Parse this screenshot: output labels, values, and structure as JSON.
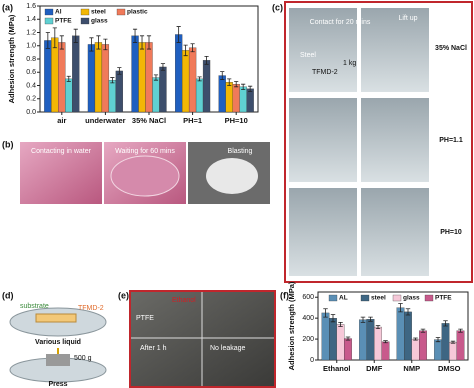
{
  "chart_data": [
    {
      "type": "bar",
      "y_label": "Adhesion strength (MPa)",
      "categories": [
        "air",
        "underwater",
        "35% NaCl",
        "PH=1",
        "PH=10"
      ],
      "series": [
        {
          "name": "Al",
          "color": "#1f5fc0",
          "values": [
            1.08,
            1.02,
            1.15,
            1.17,
            0.55
          ],
          "errors": [
            0.12,
            0.1,
            0.1,
            0.12,
            0.06
          ]
        },
        {
          "name": "steel",
          "color": "#f2b705",
          "values": [
            1.12,
            1.05,
            1.05,
            0.93,
            0.45
          ],
          "errors": [
            0.15,
            0.1,
            0.1,
            0.08,
            0.05
          ]
        },
        {
          "name": "plastic",
          "color": "#f07a5a",
          "values": [
            1.05,
            1.02,
            1.05,
            0.97,
            0.42
          ],
          "errors": [
            0.1,
            0.08,
            0.1,
            0.06,
            0.04
          ]
        },
        {
          "name": "PTFE",
          "color": "#5fd0d2",
          "values": [
            0.5,
            0.48,
            0.52,
            0.5,
            0.38
          ],
          "errors": [
            0.04,
            0.04,
            0.04,
            0.03,
            0.04
          ]
        },
        {
          "name": "glass",
          "color": "#3d4e6c",
          "values": [
            1.15,
            0.62,
            0.68,
            0.78,
            0.35
          ],
          "errors": [
            0.1,
            0.05,
            0.05,
            0.06,
            0.04
          ]
        }
      ],
      "ylim": [
        0,
        1.6
      ],
      "yticks": [
        {
          "value": 0,
          "label": "0.0"
        },
        0.2,
        0.4,
        0.6,
        0.8,
        {
          "value": 1,
          "label": "1.0"
        },
        1.2,
        1.4,
        1.6
      ],
      "legend": "upper left"
    },
    {
      "type": "bar",
      "y_label": "Adhesion strength (MPa)",
      "categories": [
        "Ethanol",
        "DMF",
        "NMP",
        "DMSO"
      ],
      "series": [
        {
          "name": "AL",
          "color": "#5a8fb5",
          "values": [
            450,
            385,
            500,
            195
          ],
          "errors": [
            40,
            25,
            40,
            20
          ]
        },
        {
          "name": "steel",
          "color": "#3e6683",
          "values": [
            400,
            390,
            460,
            350
          ],
          "errors": [
            35,
            20,
            30,
            25
          ]
        },
        {
          "name": "glass",
          "color": "#f6c8d8",
          "values": [
            340,
            315,
            200,
            170
          ],
          "errors": [
            20,
            15,
            10,
            10
          ]
        },
        {
          "name": "PTFE",
          "color": "#c85a8c",
          "values": [
            205,
            175,
            280,
            280
          ],
          "errors": [
            15,
            10,
            15,
            15
          ]
        }
      ],
      "ylim": [
        0,
        650
      ],
      "yticks": [
        0,
        200,
        400,
        600
      ],
      "legend": "upper center"
    }
  ],
  "panels": {
    "a": "(a)",
    "b": "(b)",
    "c": "(c)",
    "d": "(d)",
    "e": "(e)",
    "f": "(f)"
  },
  "panel_b": {
    "captions": [
      "Contacting in water",
      "Waiting for 60 mins",
      "Blasting"
    ]
  },
  "panel_c": {
    "contact": "Contact for 20 mins",
    "lift": "Lift up",
    "steel": "Steel",
    "tfmd": "TFMD-2",
    "weight": "1 kg",
    "rows": [
      "35% NaCl",
      "PH=1.1",
      "PH=10"
    ]
  },
  "panel_d": {
    "substrate": "substrate",
    "tfmd": "TFMD-2",
    "liquid": "Various liquid",
    "weight": "500 g",
    "press": "Press"
  },
  "panel_e": {
    "ethanol": "Ethanol",
    "ptfe": "PTFE",
    "after": "After 1 h",
    "leak": "No leakage"
  }
}
